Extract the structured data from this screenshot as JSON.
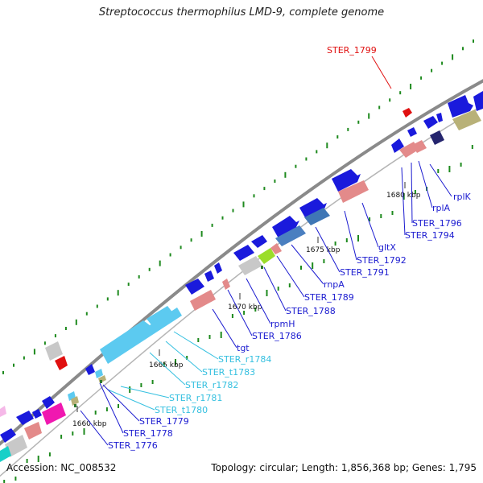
{
  "title": "Streptococcus thermophilus LMD-9, complete genome",
  "footer": {
    "accession": "Accession: NC_008532",
    "summary": "Topology: circular; Length: 1,856,368 bp; Genes: 1,795"
  },
  "scale_labels": [
    "1660 kbp",
    "1665 kbp",
    "1670 kbp",
    "1675 kbp",
    "1680 kbp"
  ],
  "gene_labels": [
    {
      "text": "STER_1799",
      "kind": "highlight"
    },
    {
      "text": "rplK",
      "kind": "protein"
    },
    {
      "text": "rplA",
      "kind": "protein"
    },
    {
      "text": "STER_1796",
      "kind": "protein"
    },
    {
      "text": "STER_1794",
      "kind": "protein"
    },
    {
      "text": "gltX",
      "kind": "protein"
    },
    {
      "text": "STER_1792",
      "kind": "protein"
    },
    {
      "text": "STER_1791",
      "kind": "protein"
    },
    {
      "text": "rnpA",
      "kind": "protein"
    },
    {
      "text": "STER_1789",
      "kind": "protein"
    },
    {
      "text": "STER_1788",
      "kind": "protein"
    },
    {
      "text": "rpmH",
      "kind": "protein"
    },
    {
      "text": "STER_1786",
      "kind": "protein"
    },
    {
      "text": "tgt",
      "kind": "protein"
    },
    {
      "text": "STER_r1784",
      "kind": "rna"
    },
    {
      "text": "STER_t1783",
      "kind": "rna"
    },
    {
      "text": "STER_r1782",
      "kind": "rna"
    },
    {
      "text": "STER_r1781",
      "kind": "rna"
    },
    {
      "text": "STER_t1780",
      "kind": "rna"
    },
    {
      "text": "STER_1779",
      "kind": "protein"
    },
    {
      "text": "STER_1778",
      "kind": "protein"
    },
    {
      "text": "STER_1776",
      "kind": "protein"
    }
  ],
  "colors": {
    "protein_label": "#1b1bd0",
    "rna_label": "#35c0e0",
    "highlight_label": "#e01010",
    "backbone": "#8a8a8a",
    "cds": "#1a1adc",
    "rrna": "#5ccaf0",
    "trna": "#e38a8a",
    "pseudo": "#c8c8c8",
    "gc_dot": "#1e8a1e"
  }
}
